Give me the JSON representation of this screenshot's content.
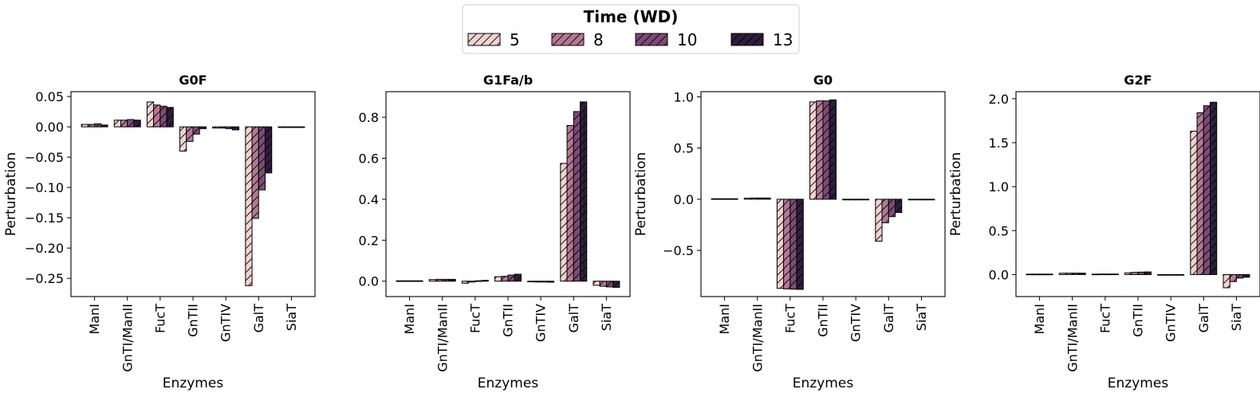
{
  "legend": {
    "title": "Time (WD)",
    "entries": [
      "5",
      "8",
      "10",
      "13"
    ],
    "colors": [
      "#efd3d0",
      "#b47a94",
      "#7d4b76",
      "#2e1e3c"
    ],
    "placement": "top-center",
    "hatch": "diagonal"
  },
  "chart_data": [
    {
      "type": "bar",
      "title": "G0F",
      "xlabel": "Enzymes",
      "ylabel": "Perturbation",
      "ylim": [
        -0.28,
        0.058
      ],
      "yticks": [
        0.05,
        0.0,
        -0.05,
        -0.1,
        -0.15,
        -0.2,
        -0.25
      ],
      "ytick_labels": [
        "0.05",
        "0.00",
        "−0.05",
        "−0.10",
        "−0.15",
        "−0.20",
        "−0.25"
      ],
      "categories": [
        "ManI",
        "GnTI/ManII",
        "FucT",
        "GnTII",
        "GnTIV",
        "GalT",
        "SiaT"
      ],
      "series": [
        {
          "name": "5",
          "values": [
            0.004,
            0.011,
            0.041,
            -0.04,
            -0.002,
            -0.262,
            0.0
          ]
        },
        {
          "name": "8",
          "values": [
            0.004,
            0.011,
            0.036,
            -0.024,
            -0.002,
            -0.151,
            0.0
          ]
        },
        {
          "name": "10",
          "values": [
            0.005,
            0.012,
            0.034,
            -0.012,
            -0.003,
            -0.104,
            0.0
          ]
        },
        {
          "name": "13",
          "values": [
            0.003,
            0.011,
            0.032,
            -0.003,
            -0.005,
            -0.076,
            0.0
          ]
        }
      ]
    },
    {
      "type": "bar",
      "title": "G1Fa/b",
      "xlabel": "Enzymes",
      "ylabel": "",
      "ylim": [
        -0.075,
        0.925
      ],
      "yticks": [
        0.8,
        0.6,
        0.4,
        0.2,
        0.0
      ],
      "ytick_labels": [
        "0.8",
        "0.6",
        "0.4",
        "0.2",
        "0.0"
      ],
      "categories": [
        "ManI",
        "GnTI/ManII",
        "FucT",
        "GnTII",
        "GnTIV",
        "GalT",
        "SiaT"
      ],
      "series": [
        {
          "name": "5",
          "values": [
            0.002,
            0.008,
            -0.01,
            0.022,
            -0.003,
            0.575,
            -0.02
          ]
        },
        {
          "name": "8",
          "values": [
            0.002,
            0.009,
            -0.004,
            0.024,
            -0.004,
            0.76,
            -0.025
          ]
        },
        {
          "name": "10",
          "values": [
            0.002,
            0.009,
            0.002,
            0.03,
            -0.004,
            0.828,
            -0.028
          ]
        },
        {
          "name": "13",
          "values": [
            0.002,
            0.009,
            0.004,
            0.034,
            -0.005,
            0.875,
            -0.03
          ]
        }
      ]
    },
    {
      "type": "bar",
      "title": "G0",
      "xlabel": "Enzymes",
      "ylabel": "Perturbation",
      "ylim": [
        -0.95,
        1.05
      ],
      "yticks": [
        1.0,
        0.5,
        0.0,
        -0.5
      ],
      "ytick_labels": [
        "1.0",
        "0.5",
        "0.0",
        "−0.5"
      ],
      "categories": [
        "ManI",
        "GnTI/ManII",
        "FucT",
        "GnTII",
        "GnTIV",
        "GalT",
        "SiaT"
      ],
      "series": [
        {
          "name": "5",
          "values": [
            0.005,
            0.01,
            -0.87,
            0.95,
            0.0,
            -0.41,
            0.0
          ]
        },
        {
          "name": "8",
          "values": [
            0.005,
            0.012,
            -0.875,
            0.96,
            0.0,
            -0.23,
            0.0
          ]
        },
        {
          "name": "10",
          "values": [
            0.005,
            0.012,
            -0.878,
            0.96,
            0.0,
            -0.17,
            0.0
          ]
        },
        {
          "name": "13",
          "values": [
            0.005,
            0.012,
            -0.88,
            0.97,
            0.0,
            -0.13,
            0.0
          ]
        }
      ]
    },
    {
      "type": "bar",
      "title": "G2F",
      "xlabel": "Enzymes",
      "ylabel": "Perturbation",
      "ylim": [
        -0.25,
        2.08
      ],
      "yticks": [
        2.0,
        1.5,
        1.0,
        0.5,
        0.0
      ],
      "ytick_labels": [
        "2.0",
        "1.5",
        "1.0",
        "0.5",
        "0.0"
      ],
      "categories": [
        "ManI",
        "GnTI/ManII",
        "FucT",
        "GnTII",
        "GnTIV",
        "GalT",
        "SiaT"
      ],
      "series": [
        {
          "name": "5",
          "values": [
            0.005,
            0.015,
            0.005,
            0.02,
            -0.005,
            1.63,
            -0.15
          ]
        },
        {
          "name": "8",
          "values": [
            0.005,
            0.016,
            0.006,
            0.025,
            -0.005,
            1.84,
            -0.08
          ]
        },
        {
          "name": "10",
          "values": [
            0.005,
            0.016,
            0.006,
            0.028,
            -0.005,
            1.92,
            -0.04
          ]
        },
        {
          "name": "13",
          "values": [
            0.005,
            0.016,
            0.006,
            0.03,
            -0.005,
            1.96,
            -0.03
          ]
        }
      ]
    }
  ]
}
